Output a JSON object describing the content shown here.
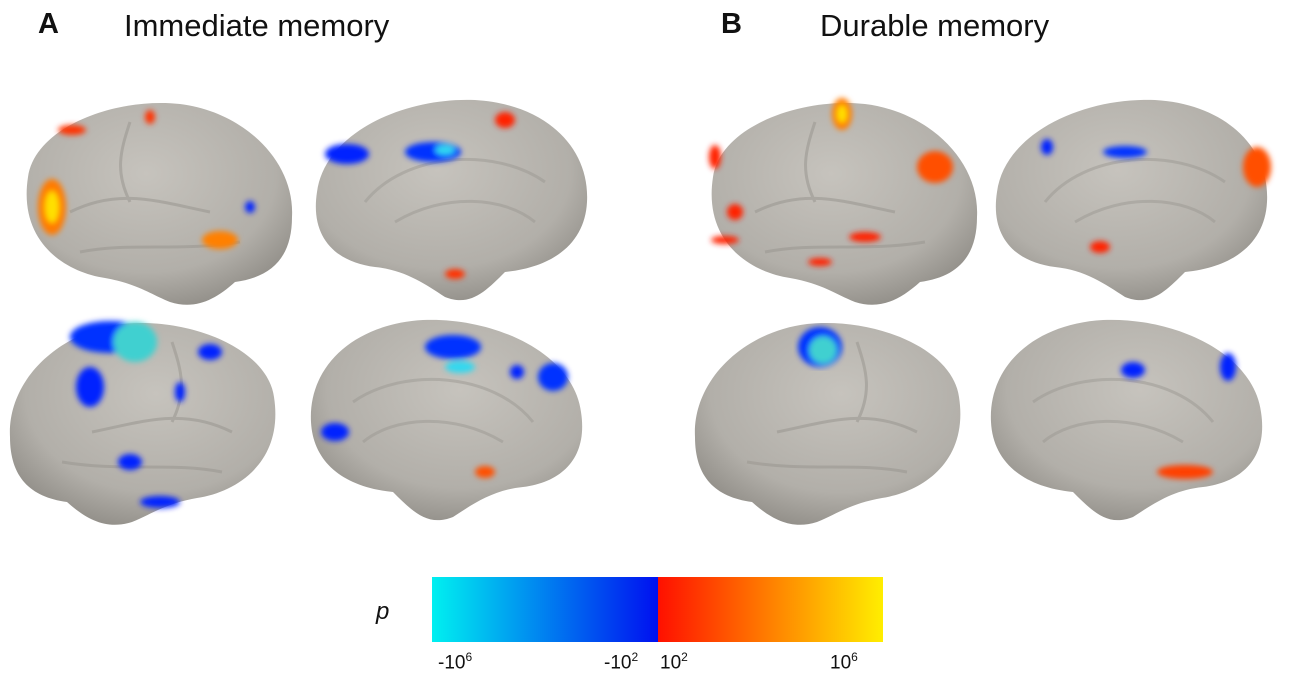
{
  "panels": [
    {
      "letter": "A",
      "title": "Immediate memory"
    },
    {
      "letter": "B",
      "title": "Durable memory"
    }
  ],
  "colorbar": {
    "label": "p",
    "ticks": [
      {
        "base": "-10",
        "exponent": "6"
      },
      {
        "base": "-10",
        "exponent": "2"
      },
      {
        "base": "10",
        "exponent": "2"
      },
      {
        "base": "10",
        "exponent": "6"
      }
    ]
  }
}
